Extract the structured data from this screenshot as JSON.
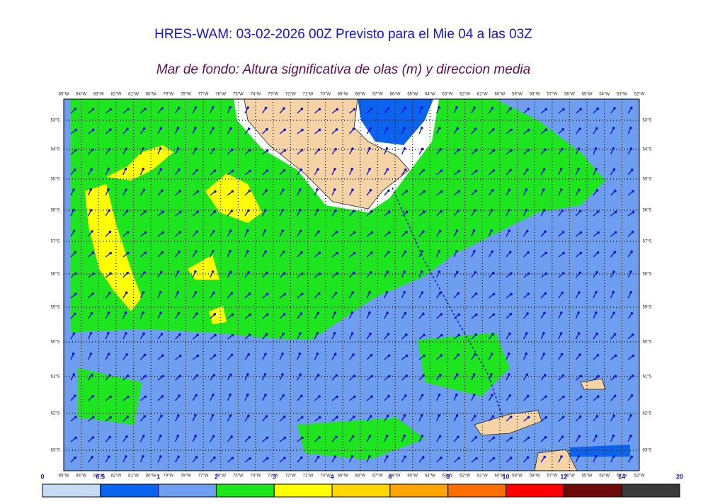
{
  "title": "HRES-WAM: 03-02-2026 00Z Previsto para el Mie 04 a las 03Z",
  "subtitle": "Mar de fondo: Altura significativa de olas (m) y direccion media",
  "map": {
    "lon_labels": [
      "85°W",
      "84°W",
      "83°W",
      "82°W",
      "81°W",
      "80°W",
      "79°W",
      "78°W",
      "77°W",
      "76°W",
      "75°W",
      "74°W",
      "73°W",
      "72°W",
      "71°W",
      "70°W",
      "69°W",
      "68°W",
      "67°W",
      "66°W",
      "65°W",
      "64°W",
      "63°W",
      "62°W",
      "61°W",
      "60°W",
      "59°W",
      "58°W",
      "57°W",
      "56°W",
      "55°W",
      "54°W",
      "53°W",
      "52°W"
    ],
    "lat_labels": [
      "53°S",
      "54°S",
      "55°S",
      "56°S",
      "57°S",
      "58°S",
      "59°S",
      "60°S",
      "61°S",
      "62°S",
      "63°S"
    ]
  },
  "colorbar": {
    "ticks": [
      0,
      0.5,
      1,
      2,
      3,
      4,
      6,
      8,
      10,
      12,
      14,
      20
    ],
    "colors": [
      "#c6dcf5",
      "#0a64f0",
      "#6e9ef0",
      "#1ee61e",
      "#ffff00",
      "#ffd700",
      "#ffa500",
      "#ff6f00",
      "#ff0000",
      "#6e0a0a",
      "#3a3a3a"
    ]
  }
}
